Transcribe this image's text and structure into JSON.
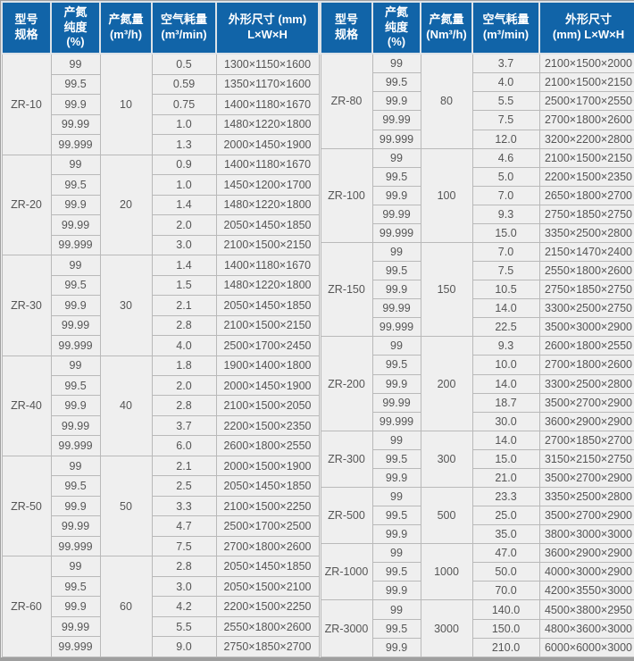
{
  "colors": {
    "header_bg": "#1164a8",
    "header_text": "#ffffff",
    "cell_bg": "#efefef",
    "cell_border": "#b9b9b9",
    "body_text": "#555555",
    "outer_border": "#9f9f9f"
  },
  "tables": [
    {
      "side": "left",
      "columns": [
        "型号\n规格",
        "产氮\n纯度\n(%)",
        "产氮量\n(m³/h)",
        "空气耗量\n(m³/min)",
        "外形尺寸 (mm)\nL×W×H"
      ],
      "groups": [
        {
          "model": "ZR-10",
          "output": "10",
          "rows": [
            [
              "99",
              "0.5",
              "1300×1150×1600"
            ],
            [
              "99.5",
              "0.59",
              "1350×1170×1600"
            ],
            [
              "99.9",
              "0.75",
              "1400×1180×1670"
            ],
            [
              "99.99",
              "1.0",
              "1480×1220×1800"
            ],
            [
              "99.999",
              "1.3",
              "2000×1450×1900"
            ]
          ]
        },
        {
          "model": "ZR-20",
          "output": "20",
          "rows": [
            [
              "99",
              "0.9",
              "1400×1180×1670"
            ],
            [
              "99.5",
              "1.0",
              "1450×1200×1700"
            ],
            [
              "99.9",
              "1.4",
              "1480×1220×1800"
            ],
            [
              "99.99",
              "2.0",
              "2050×1450×1850"
            ],
            [
              "99.999",
              "3.0",
              "2100×1500×2150"
            ]
          ]
        },
        {
          "model": "ZR-30",
          "output": "30",
          "rows": [
            [
              "99",
              "1.4",
              "1400×1180×1670"
            ],
            [
              "99.5",
              "1.5",
              "1480×1220×1800"
            ],
            [
              "99.9",
              "2.1",
              "2050×1450×1850"
            ],
            [
              "99.99",
              "2.8",
              "2100×1500×2150"
            ],
            [
              "99.999",
              "4.0",
              "2500×1700×2450"
            ]
          ]
        },
        {
          "model": "ZR-40",
          "output": "40",
          "rows": [
            [
              "99",
              "1.8",
              "1900×1400×1800"
            ],
            [
              "99.5",
              "2.0",
              "2000×1450×1900"
            ],
            [
              "99.9",
              "2.8",
              "2100×1500×2050"
            ],
            [
              "99.99",
              "3.7",
              "2200×1500×2350"
            ],
            [
              "99.999",
              "6.0",
              "2600×1800×2550"
            ]
          ]
        },
        {
          "model": "ZR-50",
          "output": "50",
          "rows": [
            [
              "99",
              "2.1",
              "2000×1500×1900"
            ],
            [
              "99.5",
              "2.5",
              "2050×1450×1850"
            ],
            [
              "99.9",
              "3.3",
              "2100×1500×2250"
            ],
            [
              "99.99",
              "4.7",
              "2500×1700×2500"
            ],
            [
              "99.999",
              "7.5",
              "2700×1800×2600"
            ]
          ]
        },
        {
          "model": "ZR-60",
          "output": "60",
          "rows": [
            [
              "99",
              "2.8",
              "2050×1450×1850"
            ],
            [
              "99.5",
              "3.0",
              "2050×1500×2100"
            ],
            [
              "99.9",
              "4.2",
              "2200×1500×2250"
            ],
            [
              "99.99",
              "5.5",
              "2550×1800×2600"
            ],
            [
              "99.999",
              "9.0",
              "2750×1850×2700"
            ]
          ]
        }
      ]
    },
    {
      "side": "right",
      "columns": [
        "型号\n规格",
        "产氮\n纯度\n(%)",
        "产氮量\n(Nm³/h)",
        "空气耗量\n(m³/min)",
        "外形尺寸\n(mm)  L×W×H"
      ],
      "groups": [
        {
          "model": "ZR-80",
          "output": "80",
          "rows": [
            [
              "99",
              "3.7",
              "2100×1500×2000"
            ],
            [
              "99.5",
              "4.0",
              "2100×1500×2150"
            ],
            [
              "99.9",
              "5.5",
              "2500×1700×2550"
            ],
            [
              "99.99",
              "7.5",
              "2700×1800×2600"
            ],
            [
              "99.999",
              "12.0",
              "3200×2200×2800"
            ]
          ]
        },
        {
          "model": "ZR-100",
          "output": "100",
          "rows": [
            [
              "99",
              "4.6",
              "2100×1500×2150"
            ],
            [
              "99.5",
              "5.0",
              "2200×1500×2350"
            ],
            [
              "99.9",
              "7.0",
              "2650×1800×2700"
            ],
            [
              "99.99",
              "9.3",
              "2750×1850×2750"
            ],
            [
              "99.999",
              "15.0",
              "3350×2500×2800"
            ]
          ]
        },
        {
          "model": "ZR-150",
          "output": "150",
          "rows": [
            [
              "99",
              "7.0",
              "2150×1470×2400"
            ],
            [
              "99.5",
              "7.5",
              "2550×1800×2600"
            ],
            [
              "99.9",
              "10.5",
              "2750×1850×2750"
            ],
            [
              "99.99",
              "14.0",
              "3300×2500×2750"
            ],
            [
              "99.999",
              "22.5",
              "3500×3000×2900"
            ]
          ]
        },
        {
          "model": "ZR-200",
          "output": "200",
          "rows": [
            [
              "99",
              "9.3",
              "2600×1800×2550"
            ],
            [
              "99.5",
              "10.0",
              "2700×1800×2600"
            ],
            [
              "99.9",
              "14.0",
              "3300×2500×2800"
            ],
            [
              "99.99",
              "18.7",
              "3500×2700×2900"
            ],
            [
              "99.999",
              "30.0",
              "3600×2900×2900"
            ]
          ]
        },
        {
          "model": "ZR-300",
          "output": "300",
          "rows": [
            [
              "99",
              "14.0",
              "2700×1850×2700"
            ],
            [
              "99.5",
              "15.0",
              "3150×2150×2750"
            ],
            [
              "99.9",
              "21.0",
              "3500×2700×2900"
            ]
          ]
        },
        {
          "model": "ZR-500",
          "output": "500",
          "rows": [
            [
              "99",
              "23.3",
              "3350×2500×2800"
            ],
            [
              "99.5",
              "25.0",
              "3500×2700×2900"
            ],
            [
              "99.9",
              "35.0",
              "3800×3000×3000"
            ]
          ]
        },
        {
          "model": "ZR-1000",
          "output": "1000",
          "rows": [
            [
              "99",
              "47.0",
              "3600×2900×2900"
            ],
            [
              "99.5",
              "50.0",
              "4000×3000×2900"
            ],
            [
              "99.9",
              "70.0",
              "4200×3550×3000"
            ]
          ]
        },
        {
          "model": "ZR-3000",
          "output": "3000",
          "rows": [
            [
              "99",
              "140.0",
              "4500×3800×2950"
            ],
            [
              "99.5",
              "150.0",
              "4800×3600×3000"
            ],
            [
              "99.9",
              "210.0",
              "6000×6000×3000"
            ]
          ]
        }
      ]
    }
  ]
}
